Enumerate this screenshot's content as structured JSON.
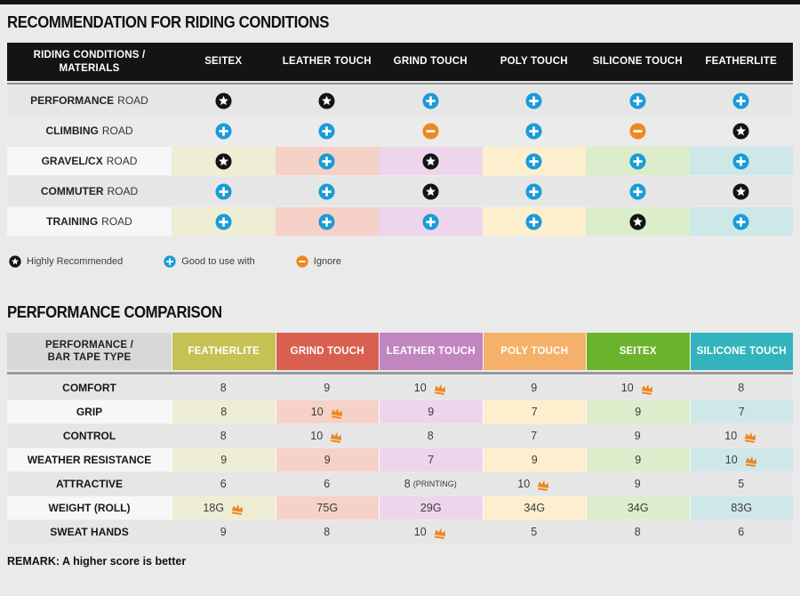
{
  "colors": {
    "page_background": "#eaeaea",
    "top_bar": "#141414",
    "star_badge": "#141414",
    "plus_badge": "#1b9bd7",
    "minus_badge": "#ec8a1e",
    "crown": "#ee8620",
    "row_backgrounds": [
      "#e6e6e6",
      "#ebebeb",
      "#f7f7f7",
      "#e6e6e6",
      "#f7f7f7"
    ],
    "t2_row_backgrounds": [
      "#e6e6e6",
      "#f7f7f7",
      "#e6e6e6",
      "#f7f7f7",
      "#e6e6e6",
      "#f7f7f7",
      "#e6e6e6"
    ],
    "column_tints": [
      "#eeeed5",
      "#f6d1c8",
      "#edd5ec",
      "#fdeecd",
      "#dcedcb",
      "#cee8e9"
    ]
  },
  "riding_table": {
    "title": "RECOMMENDATION FOR RIDING CONDITIONS",
    "header_line1": "RIDING CONDITIONS /",
    "header_line2": "MATERIALS",
    "columns": [
      "SEITEX",
      "LEATHER TOUCH",
      "GRIND TOUCH",
      "POLY TOUCH",
      "SILICONE TOUCH",
      "FEATHERLITE"
    ],
    "rows": [
      {
        "condition": "PERFORMANCE",
        "suffix": "ROAD",
        "tinted": false,
        "cells": [
          "star",
          "star",
          "plus",
          "plus",
          "plus",
          "plus"
        ]
      },
      {
        "condition": "CLIMBING",
        "suffix": "ROAD",
        "tinted": false,
        "cells": [
          "plus",
          "plus",
          "minus",
          "plus",
          "minus",
          "star"
        ]
      },
      {
        "condition": "GRAVEL/CX",
        "suffix": "ROAD",
        "tinted": true,
        "cells": [
          "star",
          "plus",
          "star",
          "plus",
          "plus",
          "plus"
        ]
      },
      {
        "condition": "COMMUTER",
        "suffix": "ROAD",
        "tinted": false,
        "cells": [
          "plus",
          "plus",
          "star",
          "plus",
          "plus",
          "star"
        ]
      },
      {
        "condition": "TRAINING",
        "suffix": "ROAD",
        "tinted": true,
        "cells": [
          "plus",
          "plus",
          "plus",
          "plus",
          "star",
          "plus"
        ]
      }
    ]
  },
  "legend": [
    {
      "icon": "star",
      "label": "Highly Recommended"
    },
    {
      "icon": "plus",
      "label": "Good to use with"
    },
    {
      "icon": "minus",
      "label": "Ignore"
    }
  ],
  "performance_table": {
    "title": "PERFORMANCE COMPARISON",
    "header_line1": "PERFORMANCE /",
    "header_line2": "BAR TAPE TYPE",
    "columns": [
      {
        "label": "FEATHERLITE",
        "color": "#c5c153"
      },
      {
        "label": "GRIND TOUCH",
        "color": "#d96050"
      },
      {
        "label": "LEATHER TOUCH",
        "color": "#c185bf"
      },
      {
        "label": "POLY TOUCH",
        "color": "#f5b169"
      },
      {
        "label": "SEITEX",
        "color": "#6bb32d"
      },
      {
        "label": "SILICONE TOUCH",
        "color": "#32b3bd"
      }
    ],
    "rows": [
      {
        "label": "COMFORT",
        "tinted": false,
        "cells": [
          {
            "value": "8"
          },
          {
            "value": "9"
          },
          {
            "value": "10",
            "crown": true
          },
          {
            "value": "9"
          },
          {
            "value": "10",
            "crown": true
          },
          {
            "value": "8"
          }
        ]
      },
      {
        "label": "GRIP",
        "tinted": true,
        "cells": [
          {
            "value": "8"
          },
          {
            "value": "10",
            "crown": true
          },
          {
            "value": "9"
          },
          {
            "value": "7"
          },
          {
            "value": "9"
          },
          {
            "value": "7"
          }
        ]
      },
      {
        "label": "CONTROL",
        "tinted": false,
        "cells": [
          {
            "value": "8"
          },
          {
            "value": "10",
            "crown": true
          },
          {
            "value": "8"
          },
          {
            "value": "7"
          },
          {
            "value": "9"
          },
          {
            "value": "10",
            "crown": true
          }
        ]
      },
      {
        "label": "WEATHER RESISTANCE",
        "tinted": true,
        "cells": [
          {
            "value": "9"
          },
          {
            "value": "9"
          },
          {
            "value": "7"
          },
          {
            "value": "9"
          },
          {
            "value": "9"
          },
          {
            "value": "10",
            "crown": true
          }
        ]
      },
      {
        "label": "ATTRACTIVE",
        "tinted": false,
        "cells": [
          {
            "value": "6"
          },
          {
            "value": "6"
          },
          {
            "value": "8",
            "note": "(PRINTING)"
          },
          {
            "value": "10",
            "crown": true
          },
          {
            "value": "9"
          },
          {
            "value": "5"
          }
        ]
      },
      {
        "label": "WEIGHT (ROLL)",
        "tinted": true,
        "cells": [
          {
            "value": "18G",
            "crown": true
          },
          {
            "value": "75G"
          },
          {
            "value": "29G"
          },
          {
            "value": "34G"
          },
          {
            "value": "34G"
          },
          {
            "value": "83G"
          }
        ]
      },
      {
        "label": "SWEAT HANDS",
        "tinted": false,
        "cells": [
          {
            "value": "9"
          },
          {
            "value": "8"
          },
          {
            "value": "10",
            "crown": true
          },
          {
            "value": "5"
          },
          {
            "value": "8"
          },
          {
            "value": "6"
          }
        ]
      }
    ]
  },
  "remark": "REMARK: A higher score is better",
  "chart_data": [
    {
      "type": "table",
      "title": "RECOMMENDATION FOR RIDING CONDITIONS",
      "row_header": "RIDING CONDITIONS / MATERIALS",
      "columns": [
        "SEITEX",
        "LEATHER TOUCH",
        "GRIND TOUCH",
        "POLY TOUCH",
        "SILICONE TOUCH",
        "FEATHERLITE"
      ],
      "rows": [
        "PERFORMANCE ROAD",
        "CLIMBING ROAD",
        "GRAVEL/CX ROAD",
        "COMMUTER ROAD",
        "TRAINING ROAD"
      ],
      "values": [
        [
          "Highly Recommended",
          "Highly Recommended",
          "Good to use with",
          "Good to use with",
          "Good to use with",
          "Good to use with"
        ],
        [
          "Good to use with",
          "Good to use with",
          "Ignore",
          "Good to use with",
          "Ignore",
          "Highly Recommended"
        ],
        [
          "Highly Recommended",
          "Good to use with",
          "Highly Recommended",
          "Good to use with",
          "Good to use with",
          "Good to use with"
        ],
        [
          "Good to use with",
          "Good to use with",
          "Highly Recommended",
          "Good to use with",
          "Good to use with",
          "Highly Recommended"
        ],
        [
          "Good to use with",
          "Good to use with",
          "Good to use with",
          "Good to use with",
          "Highly Recommended",
          "Good to use with"
        ]
      ],
      "legend": [
        "Highly Recommended (black star)",
        "Good to use with (blue plus)",
        "Ignore (orange minus)"
      ]
    },
    {
      "type": "table",
      "title": "PERFORMANCE COMPARISON",
      "row_header": "PERFORMANCE / BAR TAPE TYPE",
      "columns": [
        "FEATHERLITE",
        "GRIND TOUCH",
        "LEATHER TOUCH",
        "POLY TOUCH",
        "SEITEX",
        "SILICONE TOUCH"
      ],
      "rows": [
        "COMFORT",
        "GRIP",
        "CONTROL",
        "WEATHER RESISTANCE",
        "ATTRACTIVE",
        "WEIGHT (ROLL)",
        "SWEAT HANDS"
      ],
      "values": [
        [
          "8",
          "9",
          "10*",
          "9",
          "10*",
          "8"
        ],
        [
          "8",
          "10*",
          "9",
          "7",
          "9",
          "7"
        ],
        [
          "8",
          "10*",
          "8",
          "7",
          "9",
          "10*"
        ],
        [
          "9",
          "9",
          "7",
          "9",
          "9",
          "10*"
        ],
        [
          "6",
          "6",
          "8 (PRINTING)",
          "10*",
          "9",
          "5"
        ],
        [
          "18G*",
          "75G",
          "29G",
          "34G",
          "34G",
          "83G"
        ],
        [
          "9",
          "8",
          "10*",
          "5",
          "8",
          "6"
        ]
      ],
      "note": "* = marked with orange crown (best in row). REMARK: A higher score is better"
    }
  ]
}
